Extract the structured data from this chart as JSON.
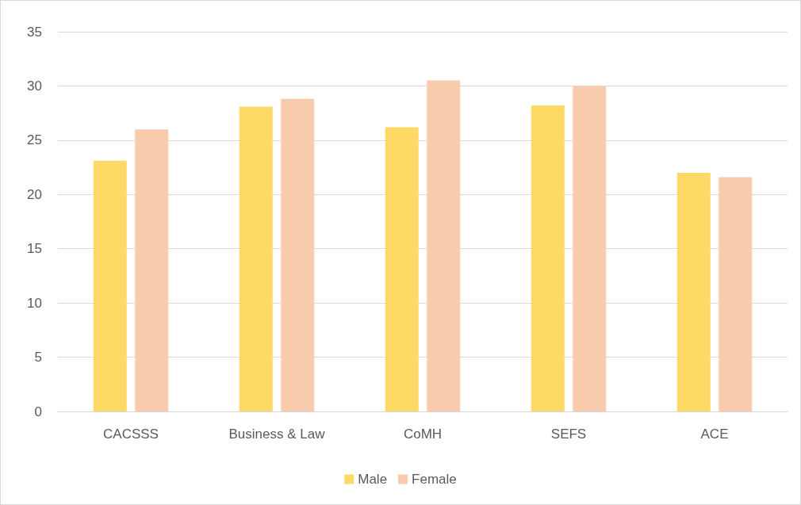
{
  "chart_data": {
    "type": "bar",
    "categories": [
      "CACSSS",
      "Business & Law",
      "CoMH",
      "SEFS",
      "ACE"
    ],
    "series": [
      {
        "name": "Male",
        "color": "#ffd966",
        "values": [
          23.1,
          28.1,
          26.2,
          28.2,
          22.0
        ]
      },
      {
        "name": "Female",
        "color": "#f8cbad",
        "values": [
          26.0,
          28.8,
          30.5,
          30.0,
          21.6
        ]
      }
    ],
    "ylim": [
      0,
      35
    ],
    "yticks": [
      0,
      5,
      10,
      15,
      20,
      25,
      30,
      35
    ],
    "grid": "y",
    "legend": "bottom"
  }
}
